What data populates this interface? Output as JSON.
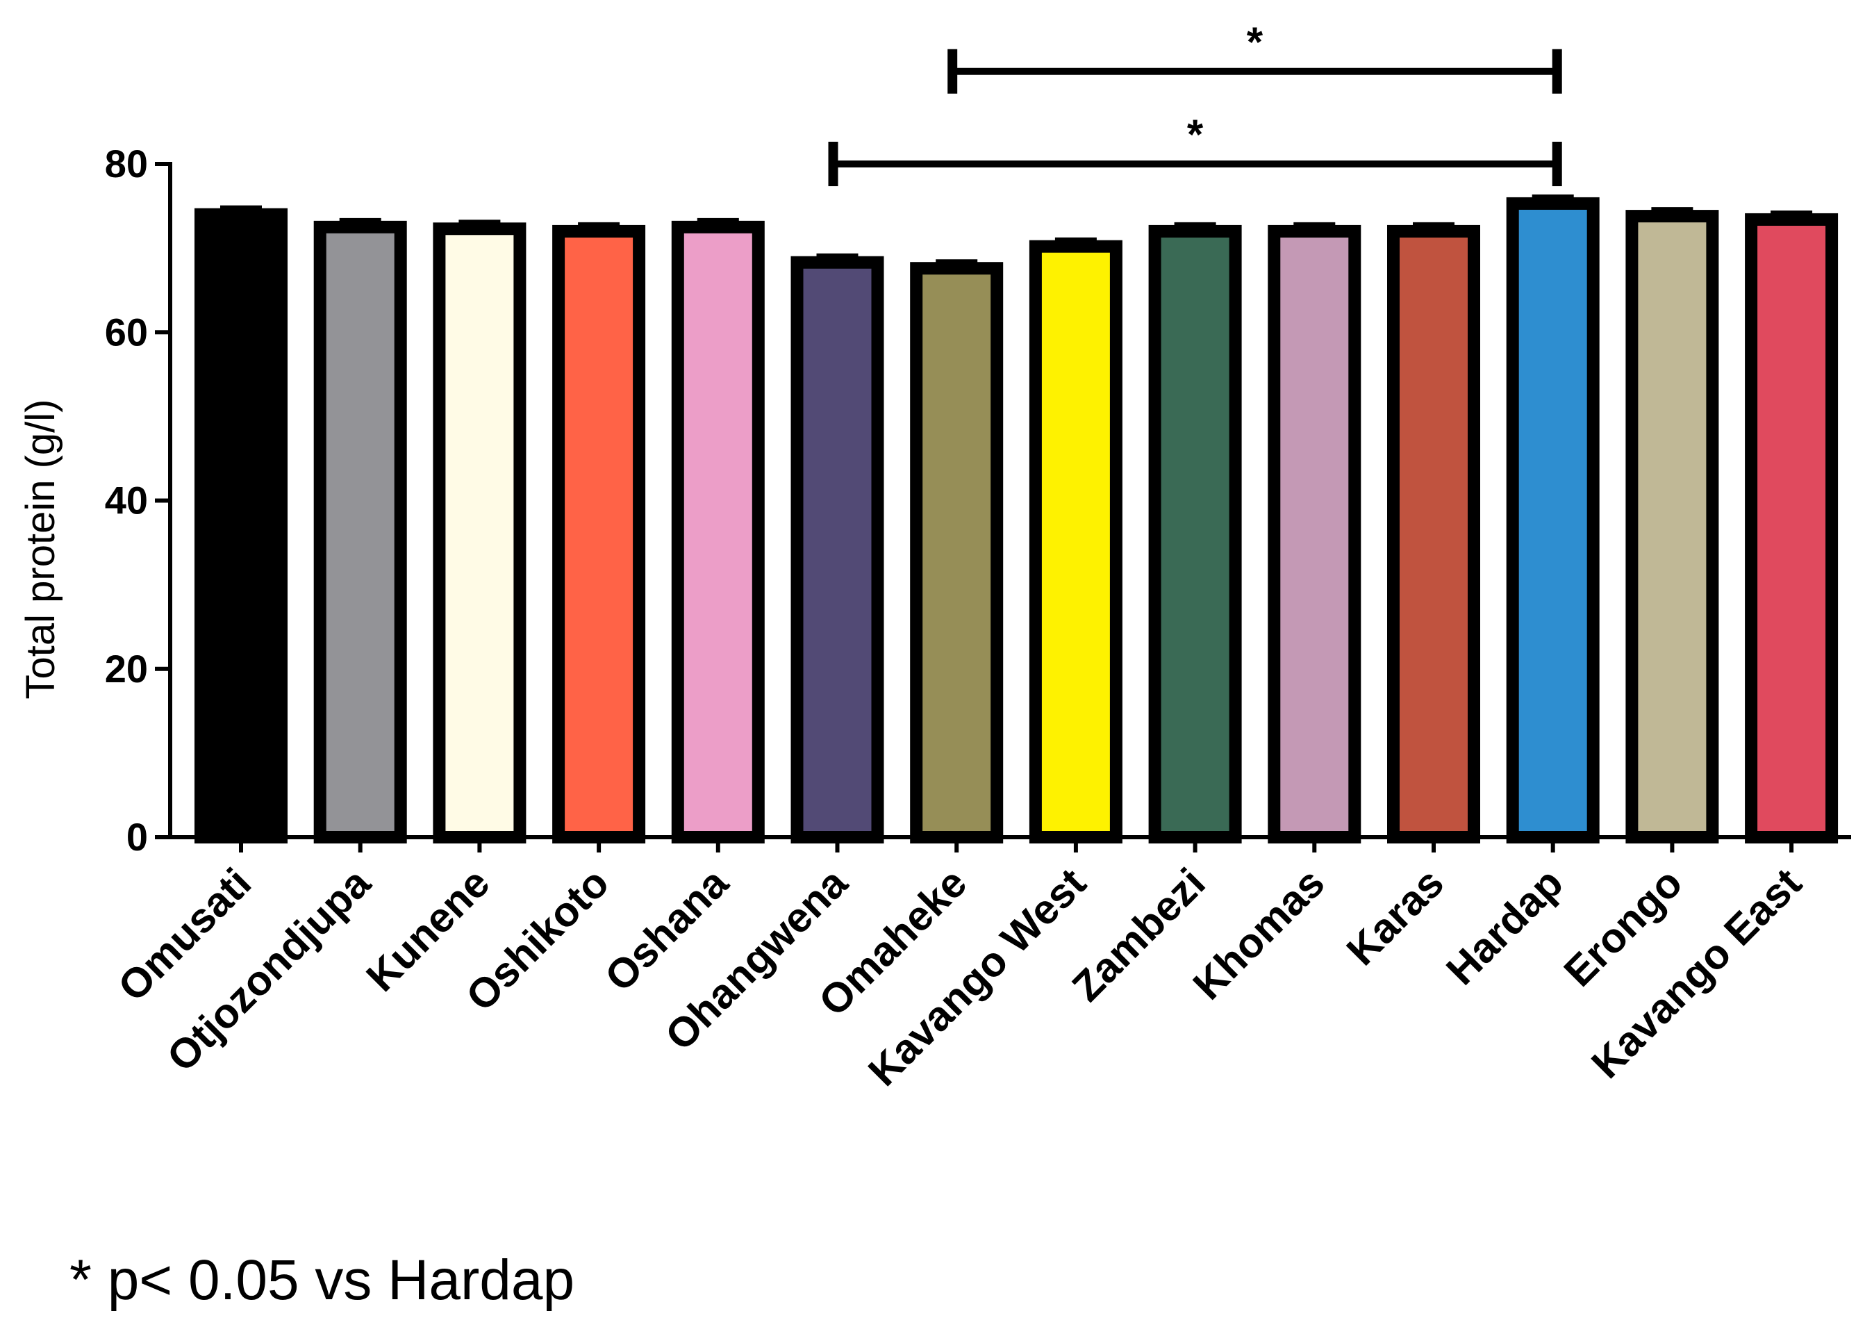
{
  "chart_data": {
    "type": "bar",
    "title": "",
    "xlabel": "",
    "ylabel": "Total protein (g/l)",
    "ylim": [
      0,
      80
    ],
    "yticks": [
      "0",
      "20",
      "40",
      "60",
      "80"
    ],
    "grid": false,
    "categories": [
      "Omusati",
      "Otjozondjupa",
      "Kunene",
      "Oshikoto",
      "Oshana",
      "Ohangwena",
      "Omaheke",
      "Kavango West",
      "Zambezi",
      "Khomas",
      "Karas",
      "Hardap",
      "Erongo",
      "Kavango East"
    ],
    "values": [
      74,
      72.5,
      72.3,
      72,
      72.5,
      68.3,
      67.6,
      70.2,
      72,
      72,
      72,
      75.3,
      73.8,
      73.4
    ],
    "colors": [
      "#000000",
      "#939397",
      "#fffbe6",
      "#ff6347",
      "#ec9ec8",
      "#524a75",
      "#968e57",
      "#fef200",
      "#3a6a55",
      "#c499b5",
      "#c0533f",
      "#2e8ed0",
      "#c0b896",
      "#e04a5e"
    ],
    "significance": [
      {
        "from": "Omaheke",
        "to": "Hardap",
        "label": "*",
        "y": 91
      },
      {
        "from": "Ohangwena",
        "to": "Hardap",
        "label": "*",
        "y": 80
      }
    ],
    "footnote": "* p< 0.05 vs Hardap"
  }
}
